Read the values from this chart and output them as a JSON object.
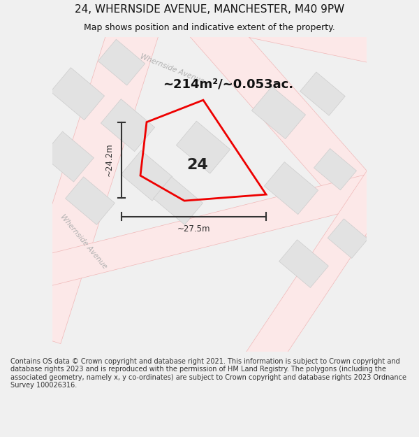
{
  "title": "24, WHERNSIDE AVENUE, MANCHESTER, M40 9PW",
  "subtitle": "Map shows position and indicative extent of the property.",
  "area_label": "~214m²/~0.053ac.",
  "number_label": "24",
  "width_label": "~27.5m",
  "height_label": "~24.2m",
  "footer": "Contains OS data © Crown copyright and database right 2021. This information is subject to Crown copyright and database rights 2023 and is reproduced with the permission of HM Land Registry. The polygons (including the associated geometry, namely x, y co-ordinates) are subject to Crown copyright and database rights 2023 Ordnance Survey 100026316.",
  "bg_color": "#f0f0f0",
  "map_bg": "#f0f0f0",
  "road_color": "#fce8e8",
  "road_edge": "#f0b8b8",
  "building_color": "#e2e2e2",
  "building_edge": "#cccccc",
  "property_color": "#ee0000",
  "dim_color": "#333333",
  "street_label_color": "#b0b0b0",
  "title_color": "#111111",
  "footer_color": "#333333",
  "white_block_color": "#f8f8f8"
}
